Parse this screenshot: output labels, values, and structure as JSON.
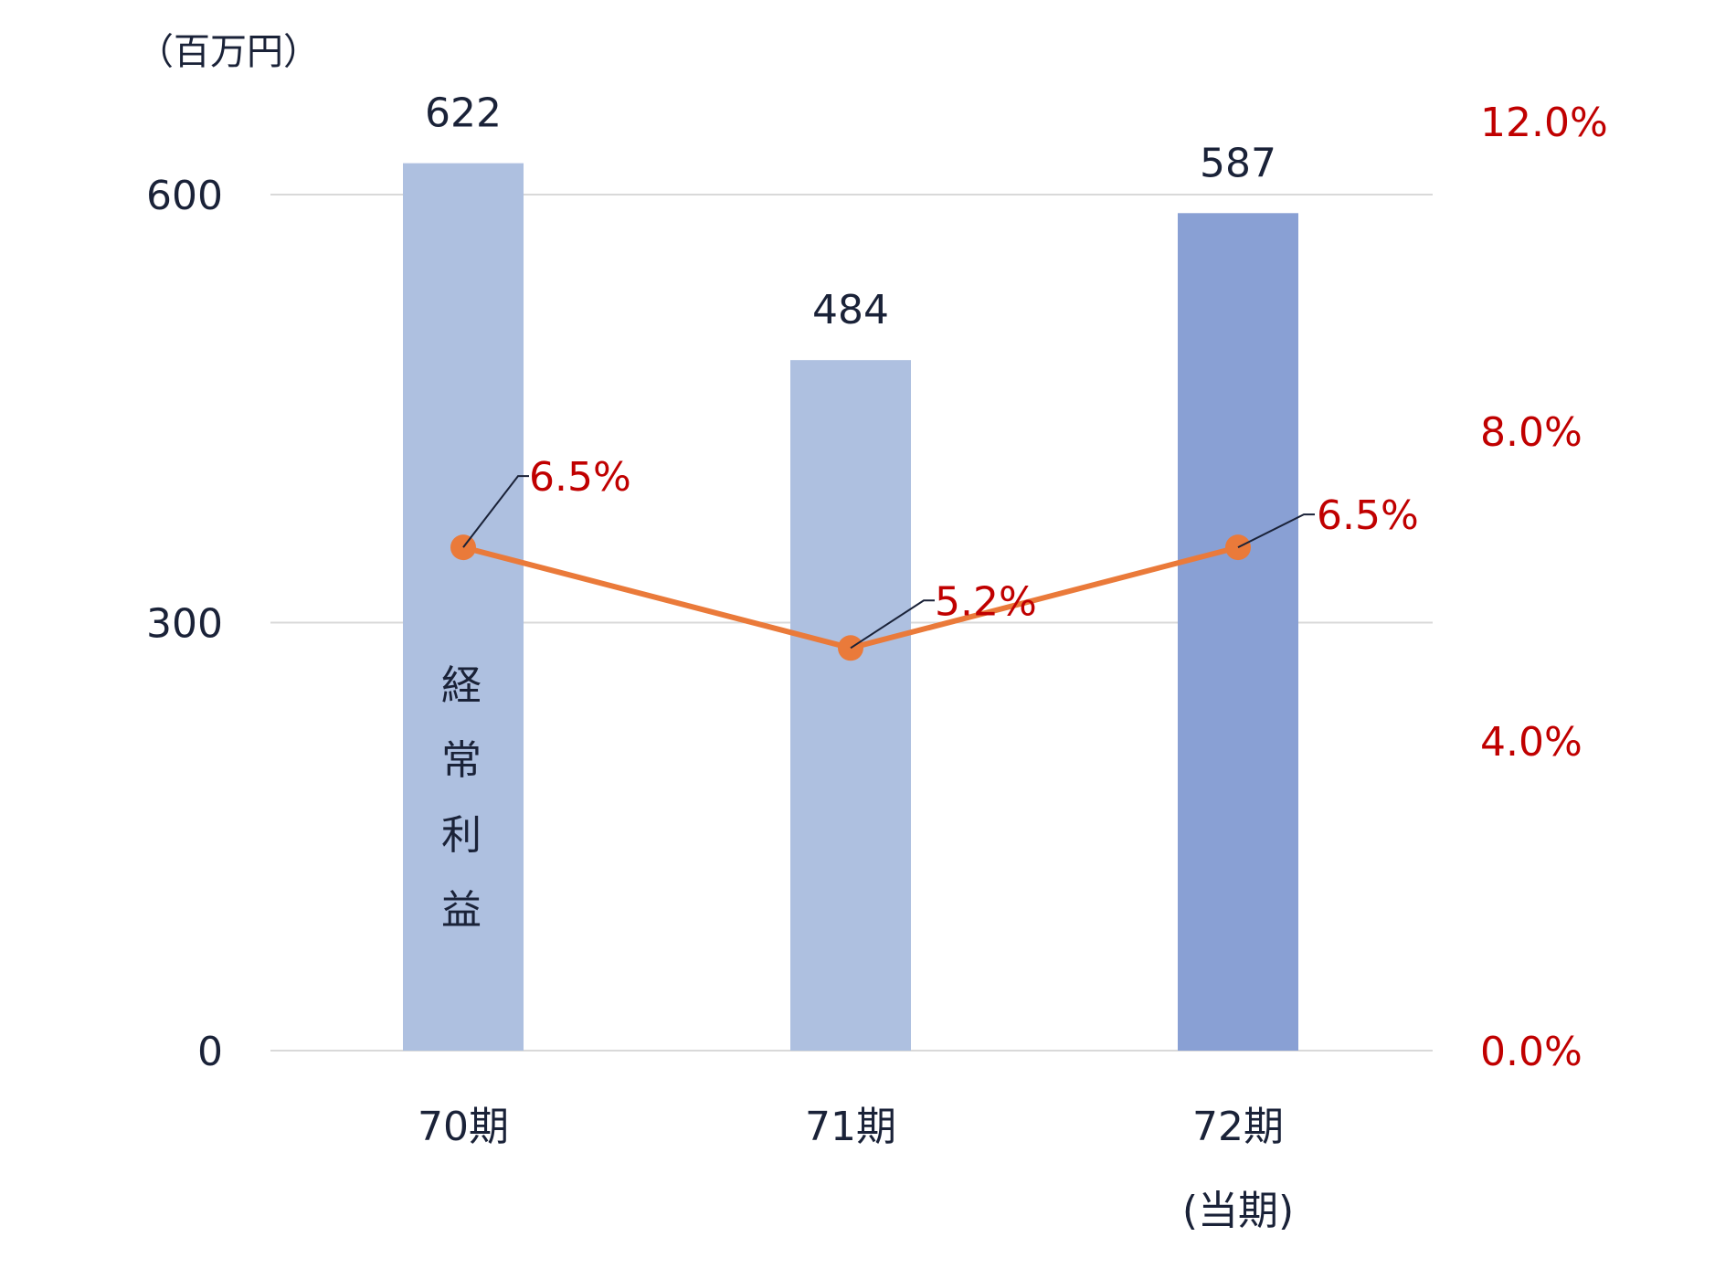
{
  "chart_data": {
    "type": "bar",
    "unit_label": "（百万円）",
    "categories": [
      "70期",
      "71期",
      "72期"
    ],
    "category_sublabels": [
      "",
      "",
      "(当期)"
    ],
    "series": [
      {
        "values": [
          622,
          484,
          587
        ],
        "colors": [
          "#aec0e0",
          "#aec0e0",
          "#89a0d4"
        ],
        "value_labels": [
          "622",
          "484",
          "587"
        ],
        "axis": "left",
        "inline_label_chars": [
          "経",
          "常",
          "利",
          "益"
        ]
      },
      {
        "type": "line",
        "values": [
          6.5,
          5.2,
          6.5
        ],
        "value_labels": [
          "6.5%",
          "5.2%",
          "6.5%"
        ],
        "color": "#ea7a3a",
        "label_color": "#c00000",
        "axis": "right"
      }
    ],
    "y_left": {
      "range": [
        0,
        600
      ],
      "ticks": [
        0,
        300,
        600
      ],
      "tick_labels": [
        "0",
        "300",
        "600"
      ]
    },
    "y_right": {
      "range": [
        0,
        12
      ],
      "ticks": [
        0,
        4,
        8,
        12
      ],
      "tick_labels": [
        "0.0%",
        "4.0%",
        "8.0%",
        "12.0%"
      ],
      "color": "#c00000"
    },
    "grid": true,
    "legend": "none"
  }
}
